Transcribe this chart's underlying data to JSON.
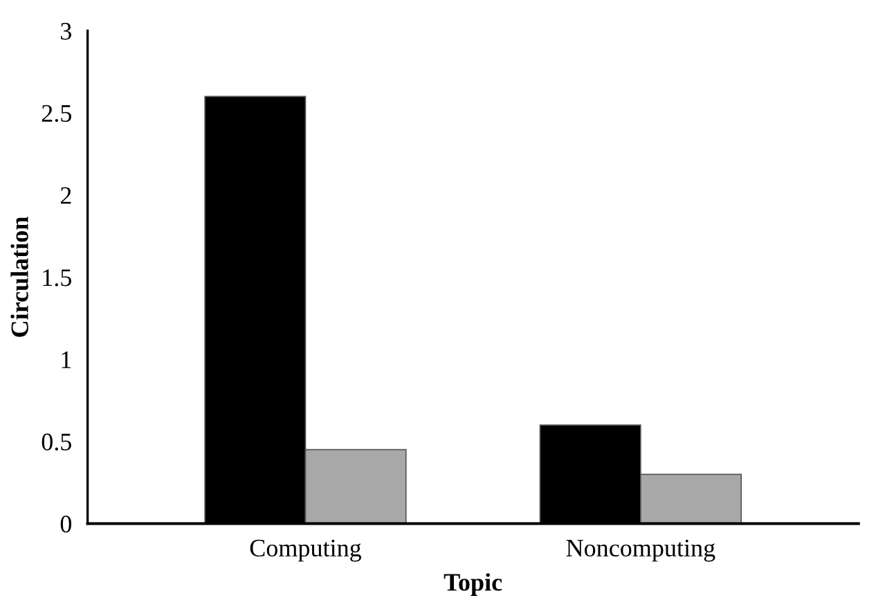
{
  "chart_data": {
    "type": "bar",
    "xlabel": "Topic",
    "ylabel": "Circulation",
    "categories": [
      "Computing",
      "Noncomputing"
    ],
    "series": [
      {
        "color": "#000000",
        "values": [
          2.6,
          0.6
        ]
      },
      {
        "color": "#a8a8a8",
        "values": [
          0.45,
          0.3
        ]
      }
    ],
    "ylim": [
      0,
      3
    ],
    "yticks": [
      0,
      0.5,
      1,
      1.5,
      2,
      2.5,
      3
    ],
    "grid": false,
    "legend": false
  }
}
